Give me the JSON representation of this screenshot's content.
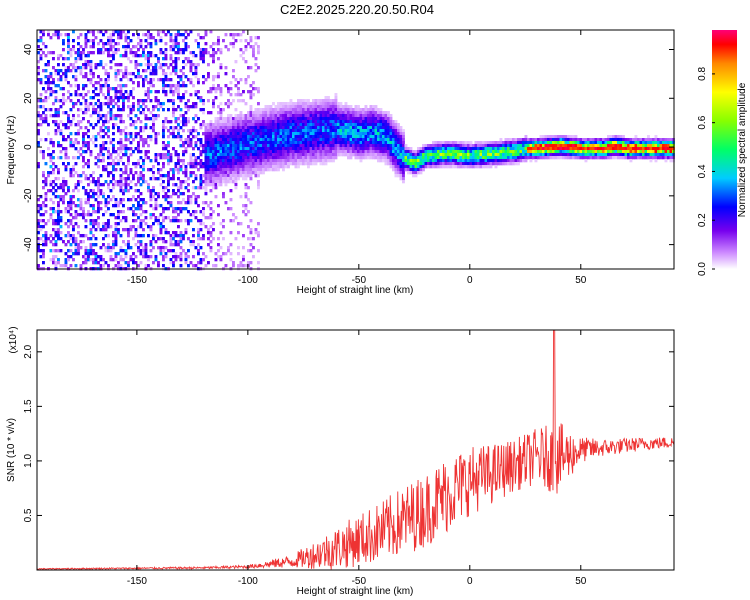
{
  "title": "C2E2.2025.220.20.50.R04",
  "chart_data": [
    {
      "type": "heatmap",
      "xlabel": "Height of straight line (km)",
      "ylabel": "Frequency (Hz)",
      "xlim": [
        -195,
        92
      ],
      "ylim": [
        -50,
        48
      ],
      "xticks": [
        -150,
        -100,
        -50,
        0,
        50
      ],
      "yticks": [
        -40,
        -20,
        0,
        20,
        40
      ],
      "ridge": {
        "x": [
          -195,
          -150,
          -120,
          -100,
          -80,
          -60,
          -50,
          -45,
          -38,
          -30,
          -25,
          -20,
          -10,
          0,
          10,
          20,
          25,
          30,
          40,
          50,
          60,
          65,
          70,
          80,
          92
        ],
        "freq": [
          0,
          -5,
          -3,
          2,
          6,
          8,
          6,
          7,
          5,
          -4,
          -6,
          -3,
          -2,
          -3,
          -2,
          -1,
          0,
          0,
          1,
          0,
          0,
          1,
          0,
          0,
          0
        ]
      },
      "colorbar": {
        "label": "Normalized spectral amplitude",
        "ticks": [
          0.0,
          0.2,
          0.4,
          0.6,
          0.8
        ],
        "range": [
          0.0,
          0.98
        ]
      }
    },
    {
      "type": "line",
      "xlabel": "Height of straight line (km)",
      "ylabel": "SNR (10 * v/v)",
      "multiplier": "(x10⁴)",
      "xlim": [
        -195,
        92
      ],
      "ylim": [
        0,
        2.2
      ],
      "xticks": [
        -150,
        -100,
        -50,
        0,
        50
      ],
      "yticks": [
        0.5,
        1.0,
        1.5,
        2.0
      ],
      "color": "#ee3333",
      "series": [
        {
          "trend_x": [
            -195,
            -120,
            -100,
            -80,
            -60,
            -40,
            -30,
            -20,
            -10,
            0,
            10,
            20,
            30,
            40,
            50,
            60,
            70,
            80,
            92
          ],
          "trend_y": [
            0.01,
            0.02,
            0.03,
            0.08,
            0.2,
            0.35,
            0.45,
            0.55,
            0.7,
            0.82,
            0.88,
            0.96,
            1.04,
            1.02,
            1.1,
            1.12,
            1.14,
            1.16,
            1.17
          ],
          "noise": [
            0.004,
            0.01,
            0.015,
            0.06,
            0.2,
            0.28,
            0.32,
            0.34,
            0.36,
            0.32,
            0.28,
            0.24,
            0.26,
            0.34,
            0.12,
            0.08,
            0.07,
            0.06,
            0.05
          ],
          "peak": {
            "x": 38,
            "y": 2.2
          }
        }
      ]
    }
  ]
}
